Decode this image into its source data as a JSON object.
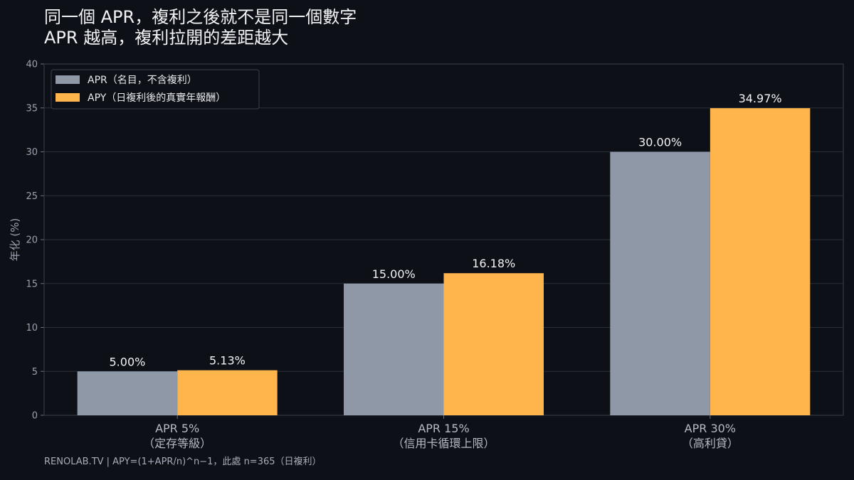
{
  "title_line1": "同一個 APR，複利之後就不是同一個數字",
  "title_line2": "APR 越高，複利拉開的差距越大",
  "footer": "RENOLAB.TV | APY=(1+APR/n)^n−1，此處 n=365（日複利）",
  "colors": {
    "apr": "#8e98a7",
    "apy": "#ffb54c",
    "background": "#0d1017",
    "grid": "#2a2f38"
  },
  "chart_data": {
    "type": "bar",
    "categories": [
      [
        "APR 5%",
        "（定存等級）"
      ],
      [
        "APR 15%",
        "（信用卡循環上限）"
      ],
      [
        "APR 30%",
        "（高利貸）"
      ]
    ],
    "series": [
      {
        "name": "APR（名目，不含複利）",
        "values": [
          5.0,
          15.0,
          30.0
        ],
        "labels": [
          "5.00%",
          "15.00%",
          "30.00%"
        ]
      },
      {
        "name": "APY（日複利後的真實年報酬）",
        "values": [
          5.13,
          16.18,
          34.97
        ],
        "labels": [
          "5.13%",
          "16.18%",
          "34.97%"
        ]
      }
    ],
    "ylabel": "年化 (%)",
    "ylim": [
      0,
      40
    ],
    "yticks": [
      0,
      5,
      10,
      15,
      20,
      25,
      30,
      35,
      40
    ],
    "grid": true,
    "legend": "top-left"
  }
}
